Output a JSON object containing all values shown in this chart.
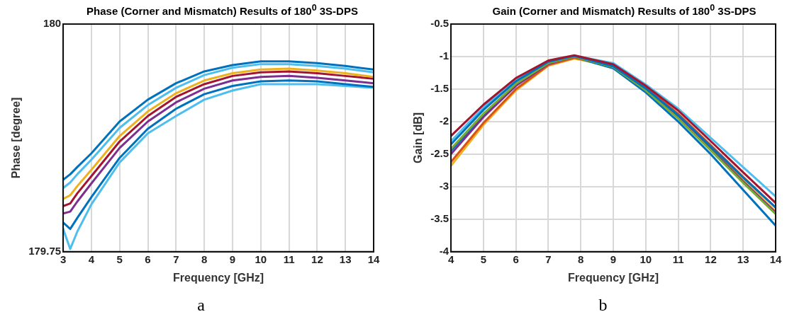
{
  "chart_data": [
    {
      "type": "line",
      "title": "Phase (Corner and Mismatch) Results of 180$^{0}$ 3S-DPS",
      "xlabel": "Frequency [GHz]",
      "ylabel": "Phase [degree]",
      "annotations": [
        "a"
      ],
      "x": [
        3,
        3.25,
        3.5,
        4,
        5,
        6,
        7,
        8,
        9,
        10,
        11,
        12,
        13,
        14
      ],
      "xlim": [
        3,
        14
      ],
      "xticks": [
        3,
        4,
        5,
        6,
        7,
        8,
        9,
        10,
        11,
        12,
        13,
        14
      ],
      "ylim": [
        179.75,
        180
      ],
      "yticks": [
        179.75,
        180
      ],
      "grid": "x",
      "legend": false,
      "marker": "none",
      "line_style": "solid",
      "series": [
        {
          "color": "#0072bd",
          "values": [
            179.829,
            179.835,
            179.843,
            179.858,
            179.893,
            179.917,
            179.935,
            179.948,
            179.955,
            179.959,
            179.959,
            179.957,
            179.954,
            179.95
          ]
        },
        {
          "color": "#4dbeee",
          "values": [
            179.82,
            179.826,
            179.835,
            179.851,
            179.886,
            179.911,
            179.93,
            179.944,
            179.952,
            179.956,
            179.956,
            179.954,
            179.951,
            179.947
          ]
        },
        {
          "color": "#edb120",
          "values": [
            179.808,
            179.812,
            179.822,
            179.84,
            179.877,
            179.904,
            179.924,
            179.938,
            179.946,
            179.95,
            179.951,
            179.949,
            179.946,
            179.942
          ]
        },
        {
          "color": "#a2142f",
          "values": [
            179.8,
            179.803,
            179.814,
            179.833,
            179.871,
            179.899,
            179.92,
            179.934,
            179.943,
            179.947,
            179.948,
            179.946,
            179.943,
            179.94
          ]
        },
        {
          "color": "#7e2f8e",
          "values": [
            179.792,
            179.794,
            179.805,
            179.825,
            179.864,
            179.893,
            179.914,
            179.929,
            179.938,
            179.942,
            179.943,
            179.941,
            179.938,
            179.935
          ]
        },
        {
          "color": "#0072bd",
          "values": [
            179.782,
            179.775,
            179.787,
            179.81,
            179.853,
            179.885,
            179.907,
            179.923,
            179.932,
            179.937,
            179.938,
            179.937,
            179.934,
            179.931
          ]
        },
        {
          "color": "#4dbeee",
          "values": [
            179.775,
            179.753,
            179.772,
            179.802,
            179.848,
            179.88,
            179.899,
            179.917,
            179.927,
            179.934,
            179.934,
            179.934,
            179.932,
            179.93
          ]
        }
      ]
    },
    {
      "type": "line",
      "title": "Gain (Corner and Mismatch) Results of 180$^{0}$ 3S-DPS",
      "xlabel": "Frequency [GHz]",
      "ylabel": "Gain [dB]",
      "annotations": [
        "b"
      ],
      "x": [
        4,
        5,
        6,
        7,
        7.8,
        9,
        10,
        11,
        12,
        13,
        14
      ],
      "xlim": [
        4,
        14
      ],
      "xticks": [
        4,
        5,
        6,
        7,
        8,
        9,
        10,
        11,
        12,
        13,
        14
      ],
      "ylim": [
        -4,
        -0.5
      ],
      "yticks": [
        -4,
        -3.5,
        -3,
        -2.5,
        -2,
        -1.5,
        -1,
        -0.5
      ],
      "grid": true,
      "legend": false,
      "marker": "none",
      "line_style": "solid",
      "series": [
        {
          "color": "#a2142f",
          "values": [
            -2.22,
            -1.74,
            -1.33,
            -1.06,
            -0.98,
            -1.12,
            -1.45,
            -1.83,
            -2.3,
            -2.78,
            -3.25
          ]
        },
        {
          "color": "#0072bd",
          "values": [
            -2.35,
            -1.82,
            -1.38,
            -1.08,
            -0.99,
            -1.15,
            -1.49,
            -1.9,
            -2.38,
            -2.86,
            -3.32
          ]
        },
        {
          "color": "#77ac30",
          "values": [
            -2.42,
            -1.88,
            -1.42,
            -1.1,
            -1.0,
            -1.16,
            -1.52,
            -1.95,
            -2.44,
            -2.94,
            -3.42
          ]
        },
        {
          "color": "#7e2f8e",
          "values": [
            -2.5,
            -1.93,
            -1.45,
            -1.11,
            -1.0,
            -1.14,
            -1.5,
            -1.93,
            -2.42,
            -2.92,
            -3.4
          ]
        },
        {
          "color": "#d95319",
          "values": [
            -2.62,
            -2.02,
            -1.5,
            -1.13,
            -1.02,
            -1.13,
            -1.47,
            -1.88,
            -2.36,
            -2.85,
            -3.32
          ]
        },
        {
          "color": "#4dbeee",
          "values": [
            -2.3,
            -1.78,
            -1.35,
            -1.07,
            -0.99,
            -1.1,
            -1.43,
            -1.8,
            -2.25,
            -2.7,
            -3.15
          ]
        },
        {
          "color": "#0072bd",
          "values": [
            -2.45,
            -1.9,
            -1.44,
            -1.12,
            -1.01,
            -1.18,
            -1.55,
            -2.0,
            -2.5,
            -3.05,
            -3.6
          ]
        },
        {
          "color": "#edb120",
          "values": [
            -2.68,
            -2.05,
            -1.52,
            -1.14,
            -1.03,
            -1.15,
            -1.5,
            -1.92,
            -2.4,
            -2.9,
            -3.38
          ]
        }
      ]
    }
  ]
}
